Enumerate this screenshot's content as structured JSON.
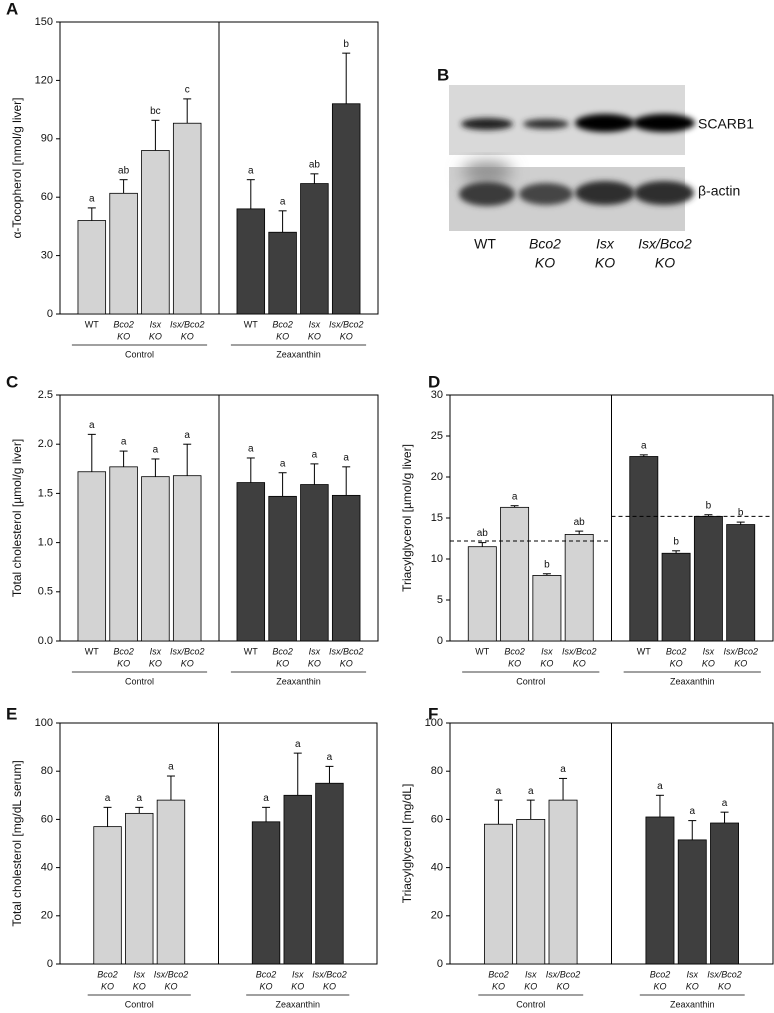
{
  "chart_data": [
    {
      "type": "bar",
      "panel": "A",
      "ylabel": "α-Tocopherol [nmol/g liver]",
      "categories": [
        [
          "WT"
        ],
        [
          "Bco2",
          "KO"
        ],
        [
          "Isx",
          "KO"
        ],
        [
          "Isx/Bco2",
          "KO"
        ]
      ],
      "ylim": [
        0,
        150
      ],
      "yticks": [
        0,
        30,
        60,
        90,
        120,
        150
      ],
      "series": [
        {
          "name": "Control",
          "color": "#d3d3d3",
          "values": [
            48,
            62,
            84,
            98
          ],
          "errors": [
            6.5,
            7,
            15.5,
            12.5
          ],
          "letters": [
            "a",
            "ab",
            "bc",
            "c"
          ]
        },
        {
          "name": "Zeaxanthin",
          "color": "#3f3f3f",
          "values": [
            54,
            42,
            67,
            108
          ],
          "errors": [
            15,
            11,
            5,
            26
          ],
          "letters": [
            "a",
            "a",
            "ab",
            "b"
          ]
        }
      ]
    },
    {
      "type": "bar",
      "panel": "C",
      "ylabel": "Total cholesterol [µmol/g liver]",
      "categories": [
        [
          "WT"
        ],
        [
          "Bco2",
          "KO"
        ],
        [
          "Isx",
          "KO"
        ],
        [
          "Isx/Bco2",
          "KO"
        ]
      ],
      "ylim": [
        0,
        2.5
      ],
      "yticks": [
        {
          "value": 0,
          "label": "0.0"
        },
        0.5,
        {
          "value": 1,
          "label": "1.0"
        },
        1.5,
        {
          "value": 2,
          "label": "2.0"
        },
        2.5
      ],
      "series": [
        {
          "name": "Control",
          "color": "#d3d3d3",
          "values": [
            1.72,
            1.77,
            1.67,
            1.68
          ],
          "errors": [
            0.38,
            0.16,
            0.18,
            0.32
          ],
          "letters": [
            "a",
            "a",
            "a",
            "a"
          ]
        },
        {
          "name": "Zeaxanthin",
          "color": "#3f3f3f",
          "values": [
            1.61,
            1.47,
            1.59,
            1.48
          ],
          "errors": [
            0.25,
            0.24,
            0.21,
            0.29
          ],
          "letters": [
            "a",
            "a",
            "a",
            "a"
          ]
        }
      ]
    },
    {
      "type": "bar",
      "panel": "D",
      "ylabel": "Triacylglycerol [µmol/g liver]",
      "categories": [
        [
          "WT"
        ],
        [
          "Bco2",
          "KO"
        ],
        [
          "Isx",
          "KO"
        ],
        [
          "Isx/Bco2",
          "KO"
        ]
      ],
      "ylim": [
        0,
        30
      ],
      "yticks": [
        0,
        5,
        10,
        15,
        20,
        25,
        30
      ],
      "series": [
        {
          "name": "Control",
          "color": "#d3d3d3",
          "values": [
            11.5,
            16.3,
            8.0,
            13.0
          ],
          "errors": [
            0.5,
            0.2,
            0.2,
            0.4
          ],
          "letters": [
            "ab",
            "a",
            "b",
            "ab"
          ],
          "reference_line": 12.2
        },
        {
          "name": "Zeaxanthin",
          "color": "#3f3f3f",
          "values": [
            22.5,
            10.7,
            15.2,
            14.2
          ],
          "errors": [
            0.2,
            0.3,
            0.2,
            0.3
          ],
          "letters": [
            "a",
            "b",
            "b",
            "b"
          ],
          "reference_line": 15.2
        }
      ]
    },
    {
      "type": "bar",
      "panel": "E",
      "ylabel": "Total cholesterol [mg/dL serum]",
      "categories": [
        [
          "Bco2",
          "KO"
        ],
        [
          "Isx",
          "KO"
        ],
        [
          "Isx/Bco2",
          "KO"
        ]
      ],
      "ylim": [
        0,
        100
      ],
      "yticks": [
        0,
        20,
        40,
        60,
        80,
        100
      ],
      "series": [
        {
          "name": "Control",
          "color": "#d3d3d3",
          "values": [
            57,
            62.5,
            68
          ],
          "errors": [
            8,
            2.5,
            10
          ],
          "letters": [
            "a",
            "a",
            "a"
          ]
        },
        {
          "name": "Zeaxanthin",
          "color": "#3f3f3f",
          "values": [
            59,
            70,
            75
          ],
          "errors": [
            6,
            17.5,
            7
          ],
          "letters": [
            "a",
            "a",
            "a"
          ]
        }
      ]
    },
    {
      "type": "bar",
      "panel": "F",
      "ylabel": "Triacylglycerol [mg/dL]",
      "categories": [
        [
          "Bco2",
          "KO"
        ],
        [
          "Isx",
          "KO"
        ],
        [
          "Isx/Bco2",
          "KO"
        ]
      ],
      "ylim": [
        0,
        100
      ],
      "yticks": [
        0,
        20,
        40,
        60,
        80,
        100
      ],
      "series": [
        {
          "name": "Control",
          "color": "#d3d3d3",
          "values": [
            58,
            60,
            68
          ],
          "errors": [
            10,
            8,
            9
          ],
          "letters": [
            "a",
            "a",
            "a"
          ]
        },
        {
          "name": "Zeaxanthin",
          "color": "#3f3f3f",
          "values": [
            61,
            51.5,
            58.5
          ],
          "errors": [
            9,
            8,
            4.5
          ],
          "letters": [
            "a",
            "a",
            "a"
          ]
        }
      ]
    }
  ],
  "blot": {
    "panel": "B",
    "proteins": [
      "SCARB1",
      "β-actin"
    ],
    "lanes": [
      [
        "WT"
      ],
      [
        "Bco2",
        "KO"
      ],
      [
        "Isx",
        "KO"
      ],
      [
        "Isx/Bco2",
        "KO"
      ]
    ]
  }
}
